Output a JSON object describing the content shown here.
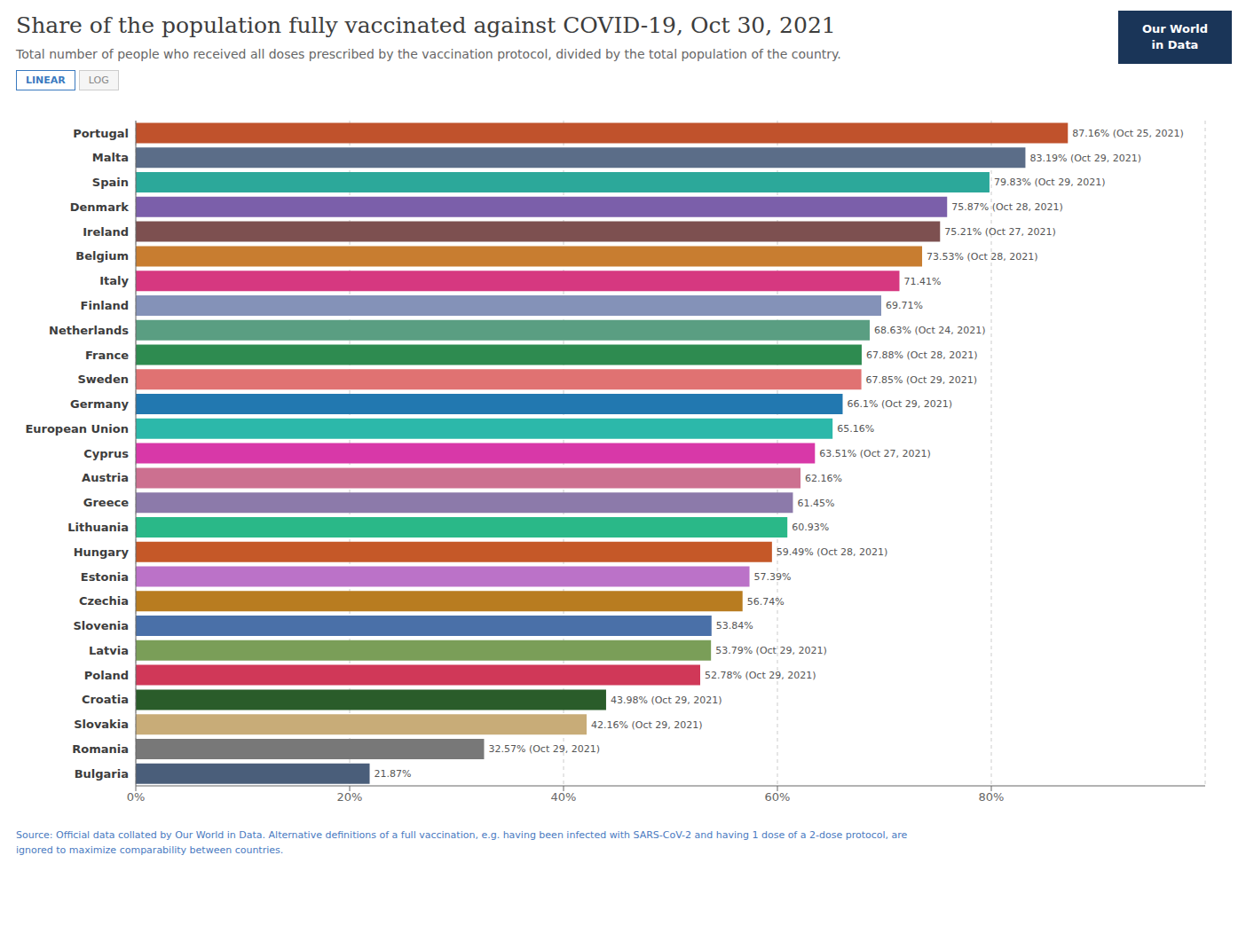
{
  "chart_data": {
    "type": "bar",
    "title": "Share of the population fully vaccinated against COVID-19, Oct 30, 2021",
    "subtitle": "Total number of people who received all doses prescribed by the vaccination protocol, divided by the total population of the country.",
    "annotations": [
      "Source: Official data collated by Our World in Data. Alternative definitions of a full vaccination, e.g. having been infected with SARS-CoV-2 and having 1 dose of a 2-dose protocol, are\nignored to maximize comparability between countries.",
      "LINEAR",
      "LOG",
      "Our World",
      "in Data"
    ],
    "orientation": "horizontal",
    "categories": [
      "Portugal",
      "Malta",
      "Spain",
      "Denmark",
      "Ireland",
      "Belgium",
      "Italy",
      "Finland",
      "Netherlands",
      "France",
      "Sweden",
      "Germany",
      "European Union",
      "Cyprus",
      "Austria",
      "Greece",
      "Lithuania",
      "Hungary",
      "Estonia",
      "Czechia",
      "Slovenia",
      "Latvia",
      "Poland",
      "Croatia",
      "Slovakia",
      "Romania",
      "Bulgaria"
    ],
    "values": [
      87.16,
      83.19,
      79.83,
      75.87,
      75.21,
      73.53,
      71.41,
      69.71,
      68.63,
      67.88,
      67.85,
      66.1,
      65.16,
      63.51,
      62.16,
      61.45,
      60.93,
      59.49,
      57.39,
      56.74,
      53.84,
      53.79,
      52.78,
      43.98,
      42.16,
      32.57,
      21.87
    ],
    "value_labels": [
      "87.16% (Oct 25, 2021)",
      "83.19% (Oct 29, 2021)",
      "79.83% (Oct 29, 2021)",
      "75.87% (Oct 28, 2021)",
      "75.21% (Oct 27, 2021)",
      "73.53% (Oct 28, 2021)",
      "71.41%",
      "69.71%",
      "68.63% (Oct 24, 2021)",
      "67.88% (Oct 28, 2021)",
      "67.85% (Oct 29, 2021)",
      "66.1% (Oct 29, 2021)",
      "65.16%",
      "63.51% (Oct 27, 2021)",
      "62.16%",
      "61.45%",
      "60.93%",
      "59.49% (Oct 28, 2021)",
      "57.39%",
      "56.74%",
      "53.84%",
      "53.79% (Oct 29, 2021)",
      "52.78% (Oct 29, 2021)",
      "43.98% (Oct 29, 2021)",
      "42.16% (Oct 29, 2021)",
      "32.57% (Oct 29, 2021)",
      "21.87%"
    ],
    "colors": [
      "#c0522c",
      "#5b6d88",
      "#2ca89a",
      "#7b5faa",
      "#7d5050",
      "#c87d30",
      "#d63880",
      "#8492b8",
      "#5a9e82",
      "#2e8b50",
      "#e07272",
      "#2278b0",
      "#2cb8aa",
      "#d838a8",
      "#cc7090",
      "#8c7aaa",
      "#2ab888",
      "#c55828",
      "#bb72c8",
      "#b87c20",
      "#4a70a8",
      "#7a9e58",
      "#d03858",
      "#2a5c2a",
      "#c8ac78",
      "#787878",
      "#4a5e7a"
    ],
    "xlim": [
      0,
      100
    ],
    "xticks": [
      {
        "value": 0,
        "label": "0%"
      },
      {
        "value": 20,
        "label": "20%"
      },
      {
        "value": 40,
        "label": "40%"
      },
      {
        "value": 60,
        "label": "60%"
      },
      {
        "value": 80,
        "label": "80%"
      }
    ],
    "grid": true,
    "data_labels": true
  }
}
